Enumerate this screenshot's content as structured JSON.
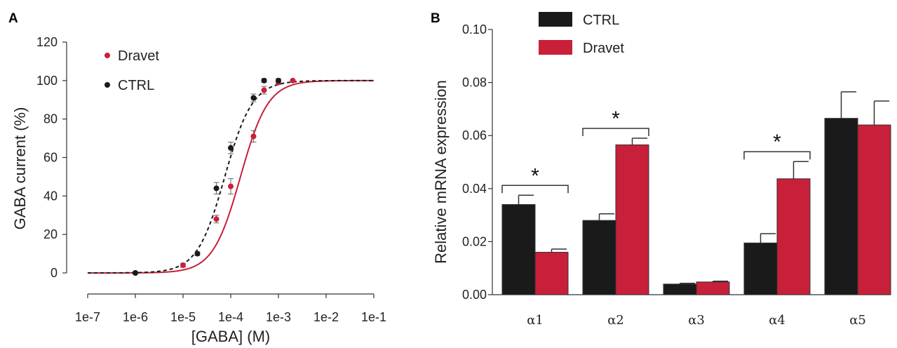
{
  "panels": {
    "a": "A",
    "b": "B"
  },
  "colors": {
    "dravet": "#c8203a",
    "ctrl": "#1a1a1a"
  },
  "chart_data": [
    {
      "type": "scatter",
      "xscale": "log",
      "xlabel": "[GABA] (M)",
      "ylabel": "GABA current (%)",
      "xlim": [
        1e-07,
        0.1
      ],
      "ylim": [
        0,
        120
      ],
      "xtick_labels": [
        "1e-7",
        "1e-6",
        "1e-5",
        "1e-4",
        "1e-3",
        "1e-2",
        "1e-1"
      ],
      "ytick_labels": [
        "0",
        "20",
        "40",
        "60",
        "80",
        "100",
        "120"
      ],
      "legend": [
        "Dravet",
        "CTRL"
      ],
      "series": [
        {
          "name": "Dravet",
          "color": "#c8203a",
          "line": "solid",
          "x": [
            1e-06,
            1e-05,
            5e-05,
            0.0001,
            0.0003,
            0.0005,
            0.001,
            0.002
          ],
          "y": [
            0,
            4,
            28,
            45,
            71,
            95,
            99,
            100
          ],
          "err": [
            0,
            1,
            2,
            4,
            3,
            2,
            1,
            0
          ],
          "fit": {
            "ec50": 0.00016,
            "hill": 1.5
          }
        },
        {
          "name": "CTRL",
          "color": "#1a1a1a",
          "line": "dashed",
          "x": [
            1e-06,
            2e-05,
            5e-05,
            0.0001,
            0.0003,
            0.0005,
            0.001
          ],
          "y": [
            0,
            10,
            44,
            65,
            91,
            100,
            100
          ],
          "err": [
            0,
            1,
            3,
            3,
            2,
            1,
            1
          ],
          "fit": {
            "ec50": 7.5e-05,
            "hill": 1.5
          }
        }
      ]
    },
    {
      "type": "bar",
      "ylabel": "Relative mRNA expression",
      "ylim": [
        0,
        0.1
      ],
      "ytick_labels": [
        "0.00",
        "0.02",
        "0.04",
        "0.06",
        "0.08",
        "0.10"
      ],
      "categories": [
        "α1",
        "α2",
        "α3",
        "α4",
        "α5"
      ],
      "legend": [
        "CTRL",
        "Dravet"
      ],
      "series": [
        {
          "name": "CTRL",
          "color": "#1a1a1a",
          "values": [
            0.034,
            0.028,
            0.004,
            0.0195,
            0.0665
          ],
          "err": [
            0.0035,
            0.0025,
            0.0003,
            0.0035,
            0.01
          ]
        },
        {
          "name": "Dravet",
          "color": "#c8203a",
          "values": [
            0.016,
            0.0565,
            0.0048,
            0.0437,
            0.064
          ],
          "err": [
            0.0012,
            0.0025,
            0.0003,
            0.0065,
            0.009
          ]
        }
      ],
      "significance": [
        {
          "category": "α1",
          "label": "*"
        },
        {
          "category": "α2",
          "label": "*"
        },
        {
          "category": "α4",
          "label": "*"
        }
      ]
    }
  ]
}
